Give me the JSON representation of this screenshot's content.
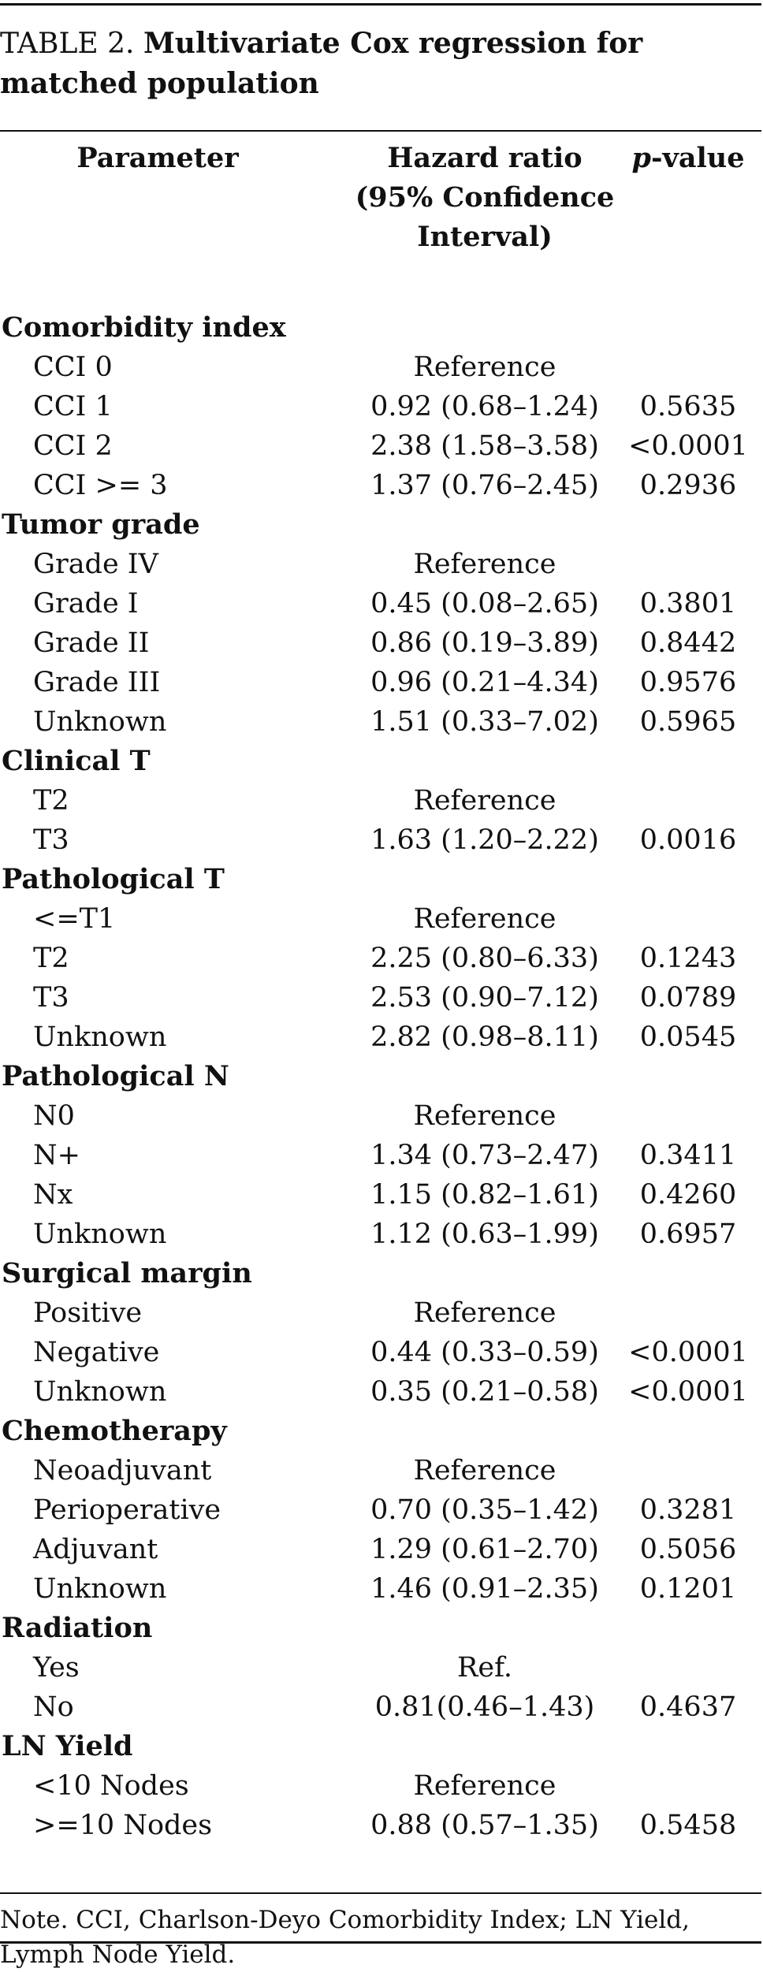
{
  "caption": {
    "label": "TABLE 2.",
    "title": "Multivariate Cox regression for matched population"
  },
  "columns": {
    "parameter": "Parameter",
    "hazard_ratio": "Hazard ratio (95% Confidence Interval)",
    "p_prefix": "p",
    "p_suffix": "-value"
  },
  "rows": [
    {
      "type": "group",
      "label": "Comorbidity index",
      "hr": "",
      "p": ""
    },
    {
      "type": "item",
      "label": "CCI 0",
      "hr": "Reference",
      "p": ""
    },
    {
      "type": "item",
      "label": "CCI 1",
      "hr": "0.92 (0.68–1.24)",
      "p": "0.5635"
    },
    {
      "type": "item",
      "label": "CCI 2",
      "hr": "2.38 (1.58–3.58)",
      "p": "<0.0001"
    },
    {
      "type": "item",
      "label": "CCI >= 3",
      "hr": "1.37 (0.76–2.45)",
      "p": "0.2936"
    },
    {
      "type": "group",
      "label": "Tumor grade",
      "hr": "",
      "p": ""
    },
    {
      "type": "item",
      "label": "Grade IV",
      "hr": "Reference",
      "p": ""
    },
    {
      "type": "item",
      "label": "Grade I",
      "hr": "0.45 (0.08–2.65)",
      "p": "0.3801"
    },
    {
      "type": "item",
      "label": "Grade II",
      "hr": "0.86 (0.19–3.89)",
      "p": "0.8442"
    },
    {
      "type": "item",
      "label": "Grade III",
      "hr": "0.96 (0.21–4.34)",
      "p": "0.9576"
    },
    {
      "type": "item",
      "label": "Unknown",
      "hr": "1.51 (0.33–7.02)",
      "p": "0.5965"
    },
    {
      "type": "group",
      "label": "Clinical T",
      "hr": "",
      "p": ""
    },
    {
      "type": "item",
      "label": "T2",
      "hr": "Reference",
      "p": ""
    },
    {
      "type": "item",
      "label": "T3",
      "hr": "1.63 (1.20–2.22)",
      "p": "0.0016"
    },
    {
      "type": "group",
      "label": "Pathological T",
      "hr": "",
      "p": ""
    },
    {
      "type": "item",
      "label": " <=T1",
      "hr": "Reference",
      "p": ""
    },
    {
      "type": "item",
      "label": "T2",
      "hr": "2.25 (0.80–6.33)",
      "p": "0.1243"
    },
    {
      "type": "item",
      "label": "T3",
      "hr": "2.53 (0.90–7.12)",
      "p": "0.0789"
    },
    {
      "type": "item",
      "label": "Unknown",
      "hr": "2.82 (0.98–8.11)",
      "p": "0.0545"
    },
    {
      "type": "group",
      "label": "Pathological N",
      "hr": "",
      "p": ""
    },
    {
      "type": "item",
      "label": "N0",
      "hr": "Reference",
      "p": ""
    },
    {
      "type": "item",
      "label": "N+",
      "hr": "1.34 (0.73–2.47)",
      "p": "0.3411"
    },
    {
      "type": "item",
      "label": "Nx",
      "hr": "1.15 (0.82–1.61)",
      "p": "0.4260"
    },
    {
      "type": "item",
      "label": "Unknown",
      "hr": "1.12 (0.63–1.99)",
      "p": "0.6957"
    },
    {
      "type": "group",
      "label": "Surgical margin",
      "hr": "",
      "p": ""
    },
    {
      "type": "item",
      "label": "Positive",
      "hr": "Reference",
      "p": ""
    },
    {
      "type": "item",
      "label": "Negative",
      "hr": "0.44 (0.33–0.59)",
      "p": "<0.0001"
    },
    {
      "type": "item",
      "label": "Unknown",
      "hr": "0.35 (0.21–0.58)",
      "p": "<0.0001"
    },
    {
      "type": "group",
      "label": "Chemotherapy",
      "hr": "",
      "p": ""
    },
    {
      "type": "item",
      "label": "Neoadjuvant",
      "hr": "Reference",
      "p": ""
    },
    {
      "type": "item",
      "label": "Perioperative",
      "hr": "0.70 (0.35–1.42)",
      "p": "0.3281"
    },
    {
      "type": "item",
      "label": "Adjuvant",
      "hr": "1.29 (0.61–2.70)",
      "p": "0.5056"
    },
    {
      "type": "item",
      "label": "Unknown",
      "hr": "1.46 (0.91–2.35)",
      "p": "0.1201"
    },
    {
      "type": "group",
      "label": "Radiation",
      "hr": "",
      "p": ""
    },
    {
      "type": "item",
      "label": "Yes",
      "hr": "Ref.",
      "p": ""
    },
    {
      "type": "item",
      "label": "No",
      "hr": "0.81(0.46–1.43)",
      "p": "0.4637"
    },
    {
      "type": "group",
      "label": "LN Yield",
      "hr": "",
      "p": ""
    },
    {
      "type": "item",
      "label": " <10 Nodes",
      "hr": "Reference",
      "p": ""
    },
    {
      "type": "item",
      "label": " >=10 Nodes",
      "hr": "0.88 (0.57–1.35)",
      "p": "0.5458"
    }
  ],
  "note": "Note. CCI, Charlson-Deyo Comorbidity Index; LN Yield, Lymph Node Yield."
}
